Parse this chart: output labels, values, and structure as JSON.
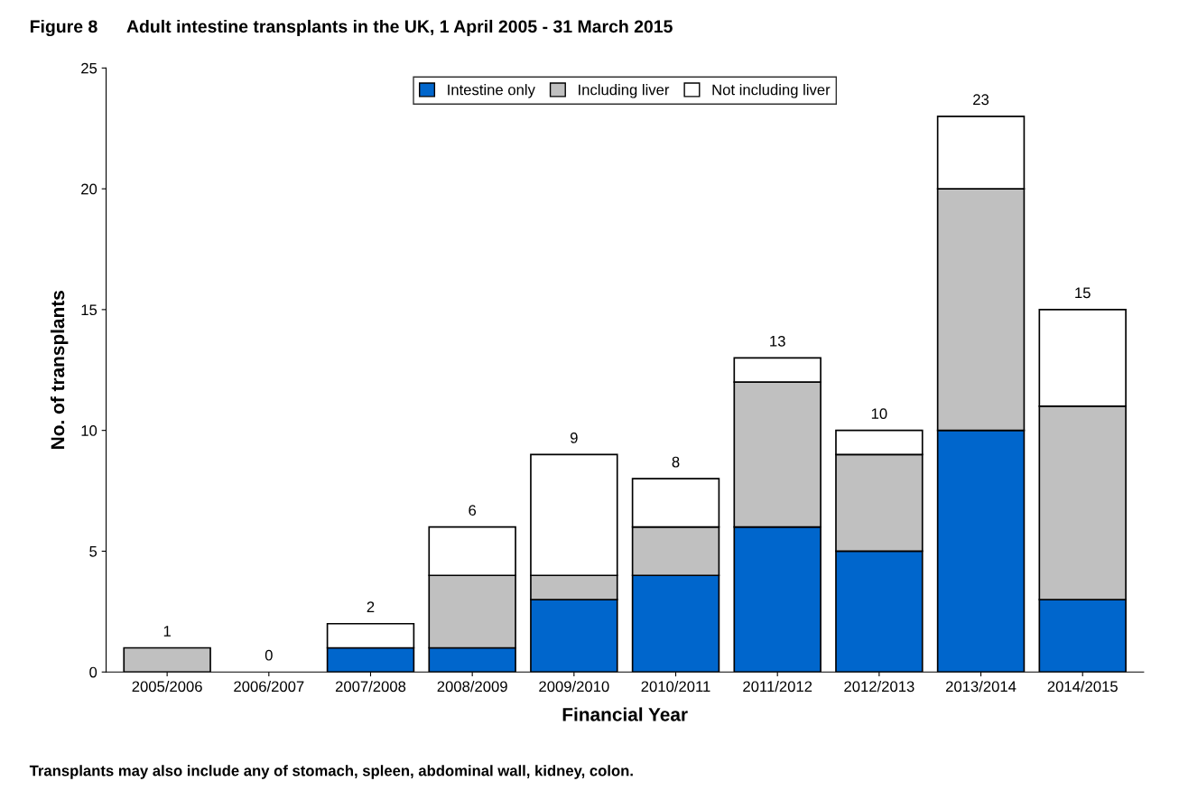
{
  "chart_data": {
    "type": "bar",
    "title": "Figure 8      Adult intestine transplants in the UK, 1 April 2005 - 31 March 2015",
    "xlabel": "Financial Year",
    "ylabel": "No. of transplants",
    "categories": [
      "2005/2006",
      "2006/2007",
      "2007/2008",
      "2008/2009",
      "2009/2010",
      "2010/2011",
      "2011/2012",
      "2012/2013",
      "2013/2014",
      "2014/2015"
    ],
    "stacked": true,
    "series": [
      {
        "name": "Intestine only",
        "color": "#0066cc",
        "values": [
          0,
          0,
          1,
          1,
          3,
          4,
          6,
          5,
          10,
          3
        ]
      },
      {
        "name": "Including liver",
        "color": "#c0c0c0",
        "values": [
          1,
          0,
          0,
          3,
          1,
          2,
          6,
          4,
          10,
          8
        ]
      },
      {
        "name": "Not including liver",
        "color": "#ffffff",
        "values": [
          0,
          0,
          1,
          2,
          5,
          2,
          1,
          1,
          3,
          4
        ]
      }
    ],
    "totals": [
      "1",
      "0",
      "2",
      "6",
      "9",
      "8",
      "13",
      "10",
      "23",
      "15"
    ],
    "ylim": [
      0,
      25
    ],
    "yticks": [
      0,
      5,
      10,
      15,
      20,
      25
    ],
    "grid": false,
    "legend": "top",
    "annotations": [
      "Transplants may also include any of stomach, spleen, abdominal wall, kidney, colon."
    ]
  }
}
